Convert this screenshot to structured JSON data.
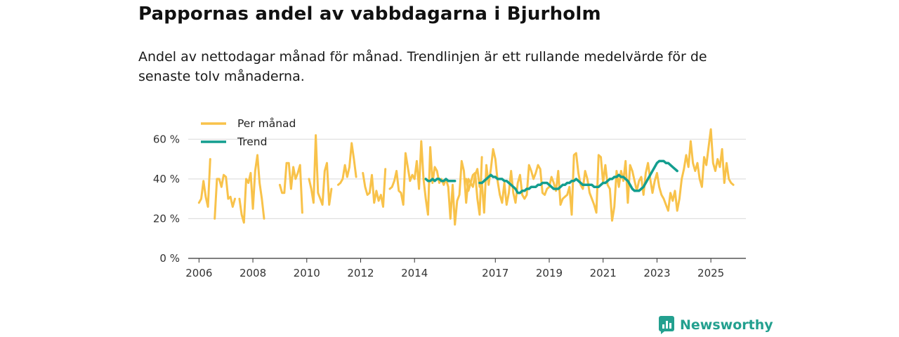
{
  "chart_data": {
    "type": "line",
    "title": "Pappornas andel av vabbdagarna i Bjurholm",
    "subtitle": "Andel av nettodagar månad för månad. Trendlinjen är ett rullande medelvärde för de senaste tolv månaderna.",
    "xlabel": "",
    "ylabel": "",
    "x_ticks": [
      "2006",
      "2008",
      "2010",
      "2012",
      "2014",
      "2017",
      "2019",
      "2021",
      "2023",
      "2025"
    ],
    "y_ticks": [
      "0 %",
      "20 %",
      "40 %",
      "60 %"
    ],
    "ylim": [
      0,
      70
    ],
    "xlim": [
      2005.6,
      2026.3
    ],
    "grid": true,
    "legend_position": "top-left",
    "colors": {
      "monthly": "#f8c24a",
      "trend": "#139e8f",
      "grid": "#d9d9d9",
      "axis": "#333333"
    },
    "series": [
      {
        "name": "Per månad",
        "key": "monthly",
        "segments": [
          {
            "start": 2006.0,
            "values": [
              28,
              30,
              39,
              31,
              26,
              50,
              null,
              20,
              40,
              40,
              36,
              42,
              41,
              30,
              31,
              26,
              30,
              null,
              30,
              22,
              18,
              40,
              38,
              43,
              25,
              44,
              52,
              38,
              30,
              20
            ]
          },
          {
            "start": 2009.0,
            "values": [
              37,
              33,
              33,
              48,
              48,
              35,
              46,
              40,
              43,
              47,
              23,
              null,
              null,
              40,
              35,
              28,
              62,
              33,
              30,
              27,
              44,
              48,
              27,
              35
            ]
          },
          {
            "start": 2011.1667,
            "values": [
              37,
              38,
              40,
              47,
              41,
              46,
              58,
              50,
              41,
              null,
              null,
              43,
              36,
              32,
              33,
              42,
              28,
              34,
              29,
              32,
              26,
              45,
              null,
              35,
              36,
              39,
              44,
              34,
              33,
              27,
              53,
              46,
              39,
              42,
              40,
              49,
              35,
              59,
              40,
              30,
              22,
              56,
              38,
              46,
              44,
              38,
              40,
              37,
              40,
              36,
              20,
              37,
              17,
              29,
              32,
              49,
              44,
              28,
              40,
              38,
              42,
              43,
              30,
              22,
              51
            ]
          },
          {
            "start": 2015.9167,
            "values": [
              40,
              34,
              38,
              36,
              42,
              45,
              36,
              38,
              23,
              47,
              37,
              45,
              55,
              50,
              39,
              32,
              28,
              38,
              27,
              33,
              44,
              33,
              28,
              38,
              42,
              32,
              30,
              32,
              47,
              44,
              40,
              43,
              47,
              45,
              33,
              32,
              35,
              36,
              41,
              38,
              34,
              44,
              27,
              30,
              31,
              32,
              36,
              22,
              52,
              53,
              43,
              37,
              35,
              44,
              40,
              33,
              30,
              27,
              23,
              52,
              51,
              38,
              47,
              37,
              35,
              19,
              26,
              44,
              36,
              44,
              39,
              49,
              28,
              47,
              44,
              39,
              34,
              39,
              41,
              32,
              43,
              48,
              40,
              33,
              39,
              43,
              36,
              32,
              30,
              27,
              24,
              33,
              29,
              34,
              24,
              30,
              40,
              45,
              52,
              46,
              59,
              48,
              44,
              48,
              40,
              36,
              51,
              47,
              56,
              65,
              48,
              44,
              50,
              46,
              55,
              38,
              48,
              40,
              38,
              37
            ]
          }
        ]
      },
      {
        "name": "Trend",
        "key": "trend",
        "segments": [
          {
            "start": 2014.4167,
            "values": [
              40,
              39,
              39,
              40,
              39,
              40,
              40,
              39,
              39,
              40,
              39,
              39,
              39,
              39
            ]
          },
          {
            "start": 2016.4167,
            "values": [
              38,
              38,
              39,
              40,
              41,
              42,
              41,
              41,
              40,
              40,
              40,
              39,
              39,
              38,
              37,
              36,
              35,
              33,
              33,
              34,
              34,
              35,
              35,
              36,
              36,
              36,
              37,
              37,
              38,
              38,
              38,
              37,
              36,
              35,
              35,
              35,
              36,
              37,
              37,
              38,
              38,
              39,
              39,
              40,
              39,
              38,
              37,
              37,
              37,
              37,
              37,
              36,
              36,
              36,
              37,
              38,
              38,
              39,
              40,
              40,
              41,
              41,
              42,
              41,
              41,
              40,
              39,
              37,
              35,
              34,
              34,
              34,
              35,
              36,
              38,
              40,
              42,
              44,
              46,
              48,
              49,
              49,
              49,
              48,
              48,
              47,
              46,
              45,
              44
            ]
          }
        ]
      }
    ]
  },
  "brand": {
    "name": "Newsworthy"
  }
}
